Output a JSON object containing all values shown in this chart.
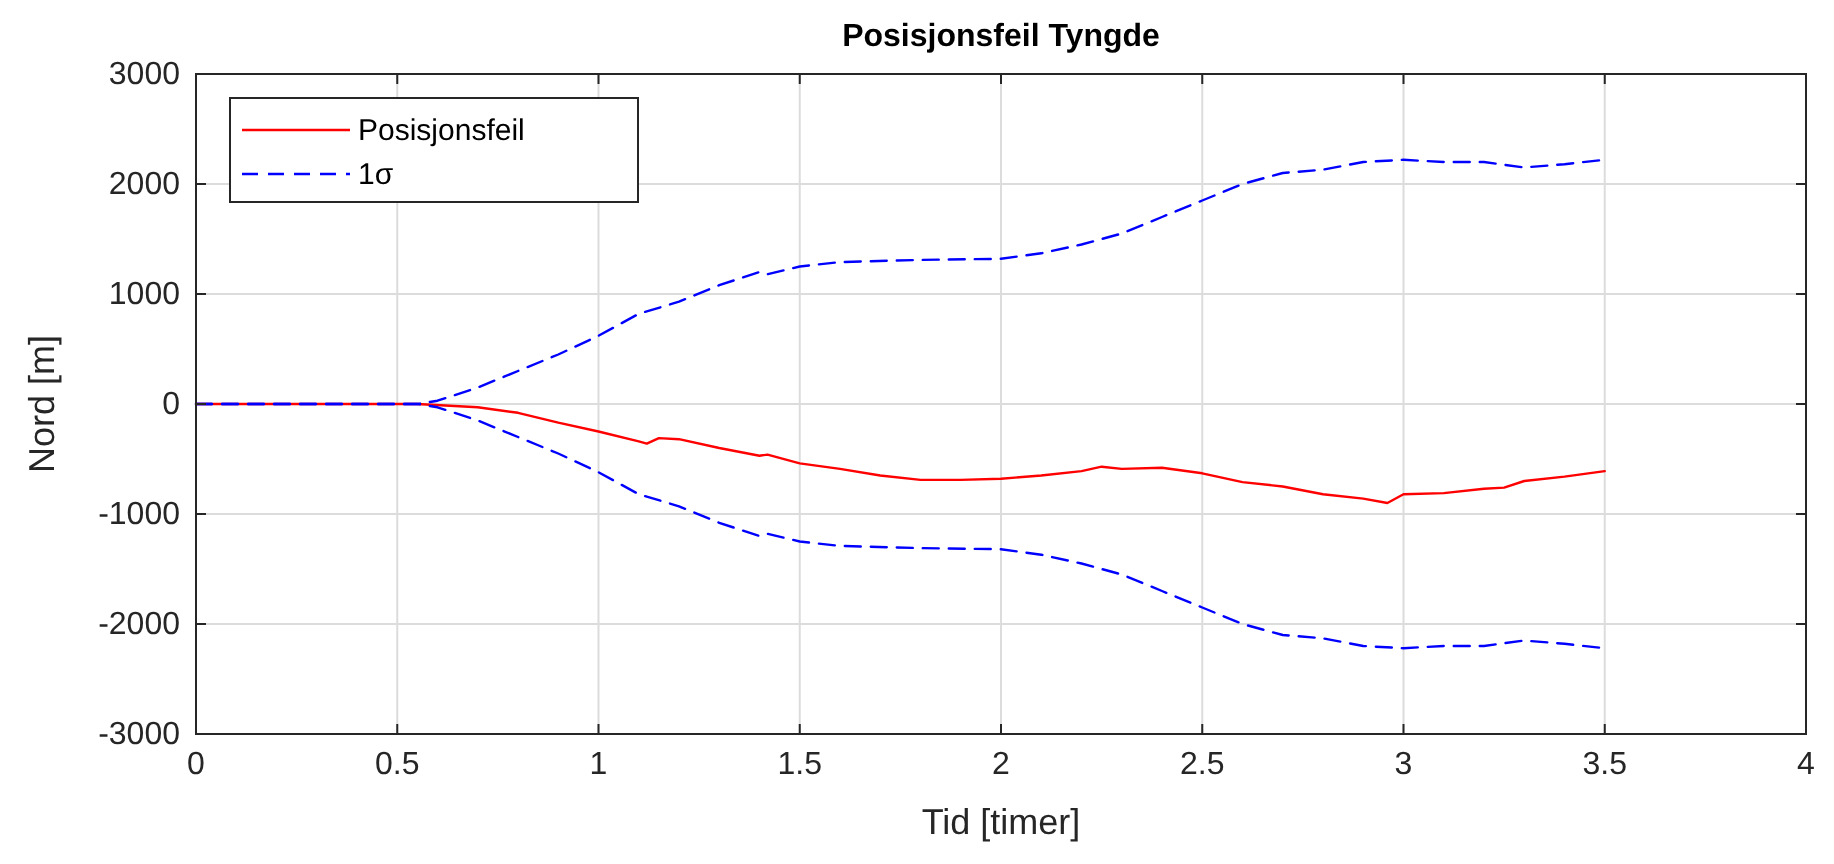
{
  "chart_data": {
    "type": "line",
    "title": "Posisjonsfeil Tyngde",
    "xlabel": "Tid [timer]",
    "ylabel": "Nord [m]",
    "xlim": [
      0,
      4
    ],
    "xticks": [
      0,
      0.5,
      1,
      1.5,
      2,
      2.5,
      3,
      3.5,
      4
    ],
    "ylim": [
      -3000,
      3000
    ],
    "yticks": [
      -3000,
      -2000,
      -1000,
      0,
      1000,
      2000,
      3000
    ],
    "grid": true,
    "legend": "top left",
    "series": [
      {
        "name": "Posisjonsfeil",
        "color": "#ff0000",
        "line_style": "solid",
        "x": [
          0,
          0.55,
          0.7,
          0.8,
          0.9,
          1.0,
          1.1,
          1.12,
          1.15,
          1.2,
          1.3,
          1.4,
          1.42,
          1.5,
          1.6,
          1.7,
          1.8,
          1.9,
          2.0,
          2.1,
          2.2,
          2.25,
          2.3,
          2.4,
          2.5,
          2.6,
          2.7,
          2.8,
          2.9,
          2.96,
          3.0,
          3.1,
          3.2,
          3.25,
          3.3,
          3.4,
          3.5
        ],
        "values": [
          0,
          0,
          -30,
          -80,
          -170,
          -250,
          -340,
          -360,
          -310,
          -320,
          -400,
          -470,
          -460,
          -540,
          -590,
          -650,
          -690,
          -690,
          -680,
          -650,
          -610,
          -570,
          -590,
          -580,
          -630,
          -710,
          -750,
          -820,
          -860,
          -900,
          -820,
          -810,
          -770,
          -760,
          -700,
          -660,
          -610
        ]
      },
      {
        "name": "1σ",
        "color": "#0000ff",
        "line_style": "dashed",
        "x": [
          0,
          0.55,
          0.6,
          0.7,
          0.8,
          0.9,
          1.0,
          1.1,
          1.2,
          1.3,
          1.4,
          1.42,
          1.5,
          1.6,
          1.8,
          2.0,
          2.1,
          2.2,
          2.3,
          2.4,
          2.5,
          2.6,
          2.7,
          2.8,
          2.9,
          3.0,
          3.1,
          3.2,
          3.3,
          3.4,
          3.5
        ],
        "values": [
          0,
          0,
          30,
          150,
          300,
          450,
          620,
          820,
          930,
          1080,
          1200,
          1180,
          1250,
          1290,
          1310,
          1320,
          1370,
          1450,
          1550,
          1700,
          1850,
          2000,
          2100,
          2130,
          2200,
          2220,
          2200,
          2200,
          2150,
          2180,
          2220
        ]
      },
      {
        "color": "#0000ff",
        "line_style": "dashed",
        "x": [
          0,
          0.55,
          0.6,
          0.7,
          0.8,
          0.9,
          1.0,
          1.1,
          1.2,
          1.3,
          1.4,
          1.42,
          1.5,
          1.6,
          1.8,
          2.0,
          2.1,
          2.2,
          2.3,
          2.4,
          2.5,
          2.6,
          2.7,
          2.8,
          2.9,
          3.0,
          3.1,
          3.2,
          3.3,
          3.4,
          3.5
        ],
        "values": [
          0,
          0,
          -30,
          -150,
          -300,
          -450,
          -620,
          -820,
          -930,
          -1080,
          -1200,
          -1180,
          -1250,
          -1290,
          -1310,
          -1320,
          -1370,
          -1450,
          -1550,
          -1700,
          -1850,
          -2000,
          -2100,
          -2130,
          -2200,
          -2220,
          -2200,
          -2200,
          -2150,
          -2180,
          -2220
        ]
      }
    ]
  }
}
